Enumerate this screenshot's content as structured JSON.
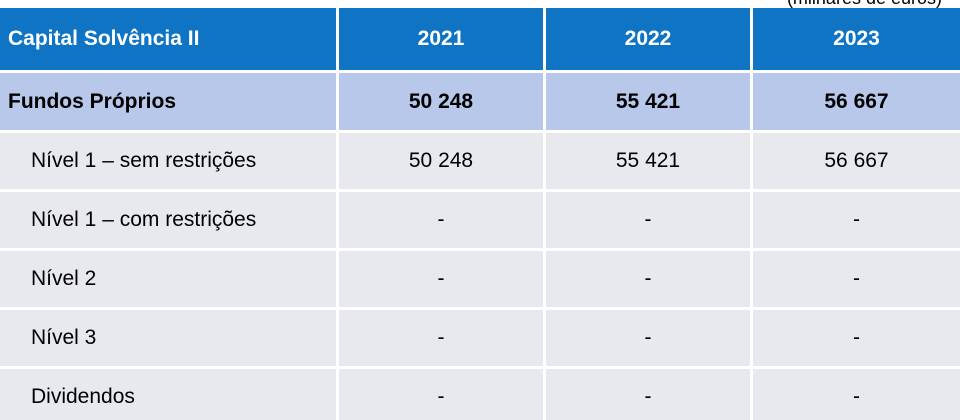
{
  "units_note": "(milhares de euros)",
  "table": {
    "header": {
      "label": "Capital Solvência II",
      "years": [
        "2021",
        "2022",
        "2023"
      ]
    },
    "totals_row": {
      "label": "Fundos Próprios",
      "values": [
        "50 248",
        "55 421",
        "56 667"
      ]
    },
    "rows": [
      {
        "label": "Nível 1 – sem restrições",
        "values": [
          "50 248",
          "55 421",
          "56 667"
        ]
      },
      {
        "label": "Nível 1 – com restrições",
        "values": [
          "-",
          "-",
          "-"
        ]
      },
      {
        "label": "Nível 2",
        "values": [
          "-",
          "-",
          "-"
        ]
      },
      {
        "label": "Nível 3",
        "values": [
          "-",
          "-",
          "-"
        ]
      },
      {
        "label": "Dividendos",
        "values": [
          "-",
          "-",
          "-"
        ]
      }
    ]
  },
  "colors": {
    "header_bg": "#0f74c4",
    "totals_bg": "#b7c8ea",
    "row_bg": "#e8e9ee"
  }
}
